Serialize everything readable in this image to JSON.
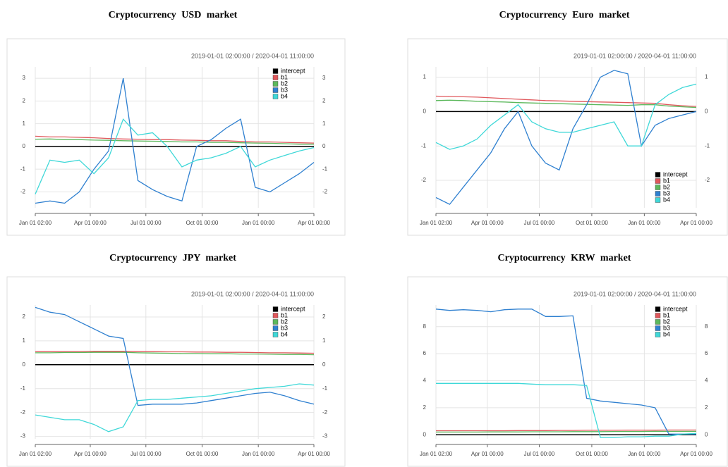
{
  "chart_data": [
    {
      "type": "line",
      "title": "Cryptocurrency USD market",
      "subtitle": "2019-01-01 02:00:00 / 2020-04-01 11:00:00",
      "x": [
        0,
        24,
        48,
        72,
        96,
        120,
        144,
        168,
        192,
        216,
        240,
        264,
        288,
        312,
        336,
        360,
        384,
        408,
        432,
        456
      ],
      "xlim": [
        0,
        456
      ],
      "xticks": [
        {
          "value": 0,
          "label": "Jan 01 02:00"
        },
        {
          "value": 90,
          "label": "Apr 01 00:00"
        },
        {
          "value": 181,
          "label": "Jul 01 00:00"
        },
        {
          "value": 273,
          "label": "Oct 01 00:00"
        },
        {
          "value": 365,
          "label": "Jan 01 00:00"
        },
        {
          "value": 456,
          "label": "Apr 01 00:00"
        }
      ],
      "ylim": [
        -2.7,
        3.5
      ],
      "yticks": [
        -2,
        -1,
        0,
        1,
        2,
        3
      ],
      "grid": true,
      "legend": "top-right",
      "series": [
        {
          "name": "intercept",
          "color": "#000000",
          "values": [
            0,
            0,
            0,
            0,
            0,
            0,
            0,
            0,
            0,
            0,
            0,
            0,
            0,
            0,
            0,
            0,
            0,
            0,
            0,
            0
          ]
        },
        {
          "name": "b1",
          "color": "#e0585c",
          "values": [
            0.45,
            0.42,
            0.42,
            0.4,
            0.38,
            0.35,
            0.33,
            0.32,
            0.3,
            0.3,
            0.28,
            0.27,
            0.25,
            0.25,
            0.22,
            0.2,
            0.2,
            0.18,
            0.16,
            0.15
          ]
        },
        {
          "name": "b2",
          "color": "#5cb85c",
          "values": [
            0.32,
            0.33,
            0.3,
            0.3,
            0.28,
            0.27,
            0.25,
            0.24,
            0.23,
            0.22,
            0.2,
            0.2,
            0.18,
            0.18,
            0.16,
            0.15,
            0.14,
            0.12,
            0.1,
            0.1
          ]
        },
        {
          "name": "b3",
          "color": "#2f80d0",
          "values": [
            -2.5,
            -2.4,
            -2.5,
            -2.0,
            -1.0,
            -0.2,
            3.0,
            -1.5,
            -1.9,
            -2.2,
            -2.4,
            0.0,
            0.3,
            0.8,
            1.2,
            -1.8,
            -2.0,
            -1.6,
            -1.2,
            -0.7
          ]
        },
        {
          "name": "b4",
          "color": "#3fd8d8",
          "values": [
            -2.1,
            -0.6,
            -0.7,
            -0.6,
            -1.2,
            -0.5,
            1.2,
            0.5,
            0.6,
            0.0,
            -0.9,
            -0.6,
            -0.5,
            -0.3,
            0.0,
            -0.9,
            -0.6,
            -0.4,
            -0.2,
            -0.05
          ]
        }
      ]
    },
    {
      "type": "line",
      "title": "Cryptocurrency Euro market",
      "subtitle": "2019-01-01 02:00:00 / 2020-04-01 11:00:00",
      "x": [
        0,
        24,
        48,
        72,
        96,
        120,
        144,
        168,
        192,
        216,
        240,
        264,
        288,
        312,
        336,
        360,
        384,
        408,
        432,
        456
      ],
      "xlim": [
        0,
        456
      ],
      "xticks": [
        {
          "value": 0,
          "label": "Jan 01 02:00"
        },
        {
          "value": 90,
          "label": "Apr 01 00:00"
        },
        {
          "value": 181,
          "label": "Jul 01 00:00"
        },
        {
          "value": 273,
          "label": "Oct 01 00:00"
        },
        {
          "value": 365,
          "label": "Jan 01 00:00"
        },
        {
          "value": 456,
          "label": "Apr 01 00:00"
        }
      ],
      "ylim": [
        -2.8,
        1.3
      ],
      "yticks": [
        -2,
        -1,
        0,
        1
      ],
      "grid": true,
      "legend": "bottom-right",
      "series": [
        {
          "name": "intercept",
          "color": "#000000",
          "values": [
            0,
            0,
            0,
            0,
            0,
            0,
            0,
            0,
            0,
            0,
            0,
            0,
            0,
            0,
            0,
            0,
            0,
            0,
            0,
            0
          ]
        },
        {
          "name": "b1",
          "color": "#e0585c",
          "values": [
            0.45,
            0.44,
            0.43,
            0.42,
            0.4,
            0.38,
            0.36,
            0.34,
            0.32,
            0.31,
            0.3,
            0.29,
            0.28,
            0.27,
            0.26,
            0.25,
            0.24,
            0.2,
            0.17,
            0.15
          ]
        },
        {
          "name": "b2",
          "color": "#5cb85c",
          "values": [
            0.32,
            0.33,
            0.32,
            0.3,
            0.29,
            0.28,
            0.26,
            0.25,
            0.24,
            0.23,
            0.22,
            0.21,
            0.2,
            0.19,
            0.18,
            0.2,
            0.2,
            0.16,
            0.14,
            0.12
          ]
        },
        {
          "name": "b3",
          "color": "#2f80d0",
          "values": [
            -2.5,
            -2.7,
            -2.2,
            -1.7,
            -1.2,
            -0.5,
            0.0,
            -1.0,
            -1.5,
            -1.7,
            -0.5,
            0.2,
            1.0,
            1.2,
            1.1,
            -1.0,
            -0.4,
            -0.2,
            -0.1,
            0.0
          ]
        },
        {
          "name": "b4",
          "color": "#3fd8d8",
          "values": [
            -0.9,
            -1.1,
            -1.0,
            -0.8,
            -0.4,
            -0.1,
            0.2,
            -0.3,
            -0.5,
            -0.6,
            -0.6,
            -0.5,
            -0.4,
            -0.3,
            -1.0,
            -1.0,
            0.2,
            0.5,
            0.7,
            0.8
          ]
        }
      ]
    },
    {
      "type": "line",
      "title": "Cryptocurrency JPY market",
      "subtitle": "2019-01-01 02:00:00 / 2020-04-01 11:00:00",
      "x": [
        0,
        24,
        48,
        72,
        96,
        120,
        144,
        168,
        192,
        216,
        240,
        264,
        288,
        312,
        336,
        360,
        384,
        408,
        432,
        456
      ],
      "xlim": [
        0,
        456
      ],
      "xticks": [
        {
          "value": 0,
          "label": "Jan 01 02:00"
        },
        {
          "value": 90,
          "label": "Apr 01 00:00"
        },
        {
          "value": 181,
          "label": "Jul 01 00:00"
        },
        {
          "value": 273,
          "label": "Oct 01 00:00"
        },
        {
          "value": 365,
          "label": "Jan 01 00:00"
        },
        {
          "value": 456,
          "label": "Apr 01 00:00"
        }
      ],
      "ylim": [
        -3.1,
        2.5
      ],
      "yticks": [
        -3,
        -2,
        -1,
        0,
        1,
        2
      ],
      "grid": true,
      "legend": "top-right",
      "series": [
        {
          "name": "intercept",
          "color": "#000000",
          "values": [
            0,
            0,
            0,
            0,
            0,
            0,
            0,
            0,
            0,
            0,
            0,
            0,
            0,
            0,
            0,
            0,
            0,
            0,
            0,
            0
          ]
        },
        {
          "name": "b1",
          "color": "#e0585c",
          "values": [
            0.55,
            0.55,
            0.55,
            0.55,
            0.56,
            0.56,
            0.56,
            0.55,
            0.55,
            0.54,
            0.54,
            0.53,
            0.53,
            0.52,
            0.52,
            0.51,
            0.5,
            0.5,
            0.49,
            0.48
          ]
        },
        {
          "name": "b2",
          "color": "#5cb85c",
          "values": [
            0.5,
            0.5,
            0.51,
            0.51,
            0.52,
            0.52,
            0.52,
            0.5,
            0.49,
            0.48,
            0.47,
            0.47,
            0.46,
            0.46,
            0.45,
            0.45,
            0.44,
            0.43,
            0.43,
            0.42
          ]
        },
        {
          "name": "b3",
          "color": "#2f80d0",
          "values": [
            2.4,
            2.2,
            2.1,
            1.8,
            1.5,
            1.2,
            1.1,
            -1.7,
            -1.65,
            -1.65,
            -1.65,
            -1.6,
            -1.5,
            -1.4,
            -1.3,
            -1.2,
            -1.15,
            -1.3,
            -1.5,
            -1.65
          ]
        },
        {
          "name": "b4",
          "color": "#3fd8d8",
          "values": [
            -2.1,
            -2.2,
            -2.3,
            -2.3,
            -2.5,
            -2.8,
            -2.6,
            -1.5,
            -1.45,
            -1.45,
            -1.4,
            -1.35,
            -1.3,
            -1.2,
            -1.1,
            -1.0,
            -0.95,
            -0.9,
            -0.8,
            -0.85
          ]
        }
      ]
    },
    {
      "type": "line",
      "title": "Cryptocurrency KRW market",
      "subtitle": "2019-01-01 02:00:00 / 2020-04-01 11:00:00",
      "x": [
        0,
        24,
        48,
        72,
        96,
        120,
        144,
        168,
        192,
        216,
        240,
        264,
        288,
        312,
        336,
        360,
        384,
        408,
        432,
        456
      ],
      "xlim": [
        0,
        456
      ],
      "xticks": [
        {
          "value": 0,
          "label": "Jan 01 02:00"
        },
        {
          "value": 90,
          "label": "Apr 01 00:00"
        },
        {
          "value": 181,
          "label": "Jul 01 00:00"
        },
        {
          "value": 273,
          "label": "Oct 01 00:00"
        },
        {
          "value": 365,
          "label": "Jan 01 00:00"
        },
        {
          "value": 456,
          "label": "Apr 01 00:00"
        }
      ],
      "ylim": [
        -0.3,
        9.6
      ],
      "yticks": [
        0,
        2,
        4,
        6,
        8
      ],
      "grid": true,
      "legend": "top-right",
      "series": [
        {
          "name": "intercept",
          "color": "#000000",
          "values": [
            0,
            0,
            0,
            0,
            0,
            0,
            0,
            0,
            0,
            0,
            0,
            0,
            0,
            0,
            0,
            0,
            0,
            0,
            0,
            0
          ]
        },
        {
          "name": "b1",
          "color": "#e0585c",
          "values": [
            0.3,
            0.3,
            0.3,
            0.3,
            0.3,
            0.3,
            0.31,
            0.31,
            0.31,
            0.32,
            0.32,
            0.33,
            0.33,
            0.33,
            0.34,
            0.34,
            0.34,
            0.35,
            0.35,
            0.35
          ]
        },
        {
          "name": "b2",
          "color": "#5cb85c",
          "values": [
            0.2,
            0.2,
            0.2,
            0.2,
            0.21,
            0.21,
            0.21,
            0.22,
            0.22,
            0.22,
            0.23,
            0.23,
            0.23,
            0.24,
            0.24,
            0.24,
            0.25,
            0.25,
            0.25,
            0.25
          ]
        },
        {
          "name": "b3",
          "color": "#2f80d0",
          "values": [
            9.3,
            9.2,
            9.25,
            9.2,
            9.1,
            9.25,
            9.3,
            9.3,
            8.75,
            8.75,
            8.8,
            2.7,
            2.5,
            2.4,
            2.3,
            2.2,
            2.0,
            0.05,
            0.05,
            0.05
          ]
        },
        {
          "name": "b4",
          "color": "#3fd8d8",
          "values": [
            3.8,
            3.8,
            3.8,
            3.8,
            3.8,
            3.8,
            3.8,
            3.75,
            3.7,
            3.7,
            3.7,
            3.65,
            -0.2,
            -0.2,
            -0.15,
            -0.15,
            -0.1,
            -0.1,
            0.05,
            0.1
          ]
        }
      ]
    }
  ]
}
